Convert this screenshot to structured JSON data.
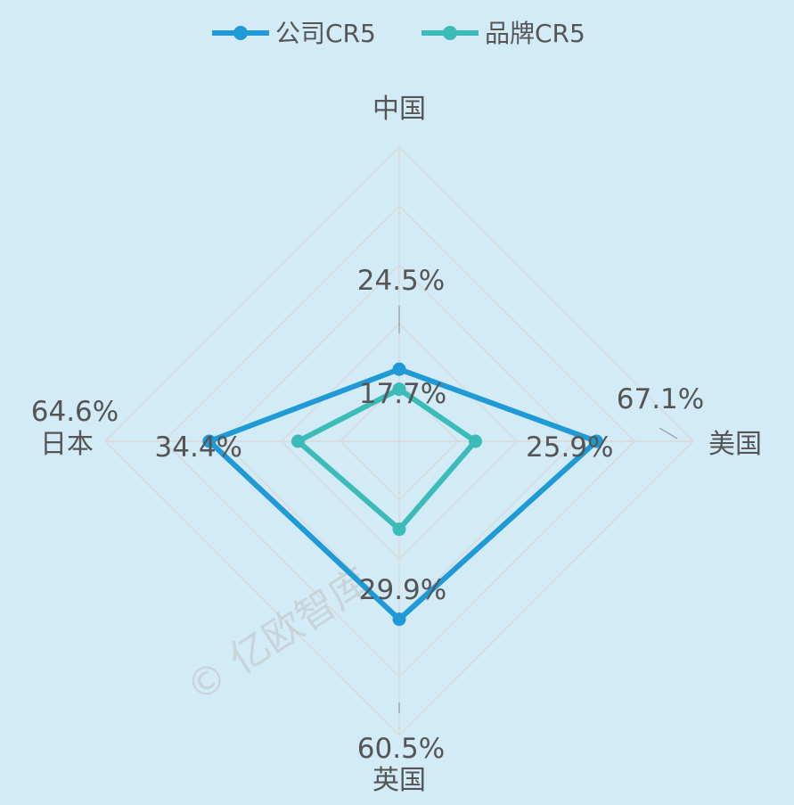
{
  "chart_data": {
    "type": "radar",
    "title": "",
    "categories": [
      "中国",
      "美国",
      "英国",
      "日本"
    ],
    "rlim": [
      0,
      100
    ],
    "grid": true,
    "legend_position": "top",
    "series": [
      {
        "name": "公司CR5",
        "color": "#1f9ad6",
        "values": [
          24.5,
          67.1,
          60.5,
          64.6
        ],
        "labels": [
          "24.5%",
          "67.1%",
          "60.5%",
          "64.6%"
        ]
      },
      {
        "name": "品牌CR5",
        "color": "#3bbcb8",
        "values": [
          17.7,
          25.9,
          29.9,
          34.4
        ],
        "labels": [
          "17.7%",
          "25.9%",
          "29.9%",
          "34.4%"
        ]
      }
    ]
  },
  "watermark": "© 亿欧智库"
}
